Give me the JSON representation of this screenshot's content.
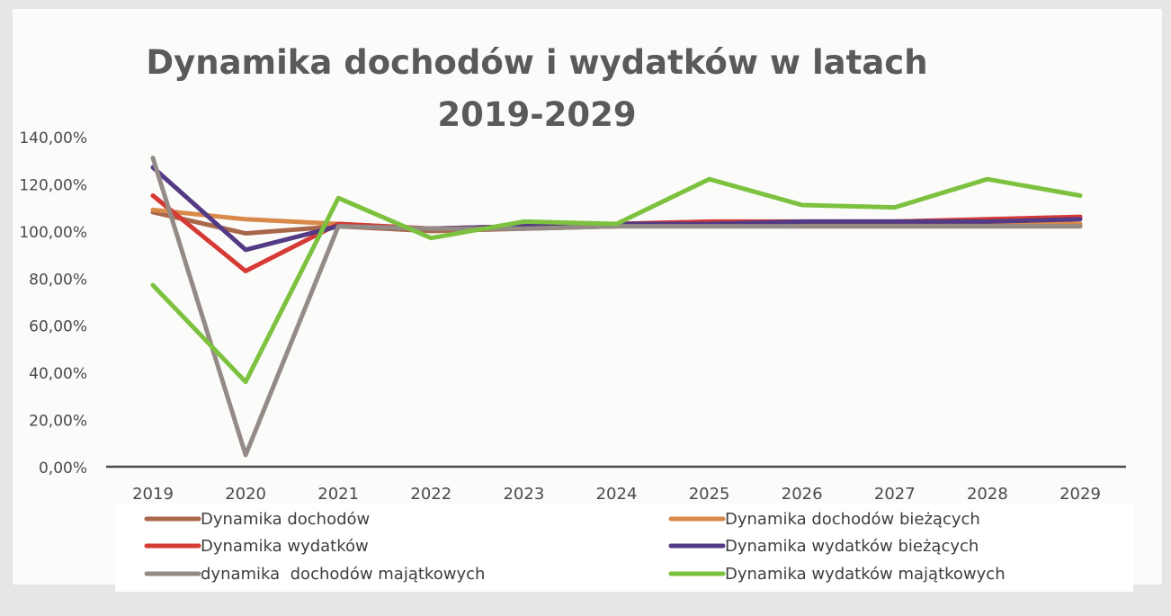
{
  "chart_data": {
    "type": "line",
    "title_lines": [
      "Dynamika dochodów i wydatków w latach",
      "2019-2029"
    ],
    "xlabel": "",
    "ylabel": "",
    "categories": [
      "2019",
      "2020",
      "2021",
      "2022",
      "2023",
      "2024",
      "2025",
      "2026",
      "2027",
      "2028",
      "2029"
    ],
    "ylim": [
      0,
      140
    ],
    "yticks": [
      0,
      20,
      40,
      60,
      80,
      100,
      120,
      140
    ],
    "ytick_labels": [
      "0,00%",
      "20,00%",
      "40,00%",
      "60,00%",
      "80,00%",
      "100,00%",
      "120,00%",
      "140,00%"
    ],
    "grid": false,
    "legend_position": "bottom",
    "series": [
      {
        "name": "Dynamika dochodów",
        "color": "#a9674a",
        "values": [
          108,
          99,
          102,
          100,
          101,
          102,
          102,
          102,
          102,
          102,
          102
        ]
      },
      {
        "name": "Dynamika dochodów bieżących",
        "color": "#d9894a",
        "values": [
          109,
          105,
          103,
          101,
          102,
          102,
          103,
          103,
          103,
          103,
          103
        ]
      },
      {
        "name": "Dynamika wydatków",
        "color": "#d63a35",
        "values": [
          115,
          83,
          103,
          101,
          102,
          103,
          104,
          104,
          104,
          105,
          106
        ]
      },
      {
        "name": "Dynamika wydatków bieżących",
        "color": "#523a85",
        "values": [
          127,
          92,
          102,
          101,
          102,
          103,
          103,
          104,
          104,
          104,
          105
        ]
      },
      {
        "name": "dynamika  dochodów majątkowych",
        "color": "#948b86",
        "values": [
          131,
          5,
          102,
          101,
          101,
          102,
          102,
          102,
          102,
          102,
          102
        ]
      },
      {
        "name": "Dynamika wydatków majątkowych",
        "color": "#7cc23f",
        "values": [
          77,
          36,
          114,
          97,
          104,
          103,
          122,
          111,
          110,
          122,
          115
        ]
      }
    ]
  }
}
